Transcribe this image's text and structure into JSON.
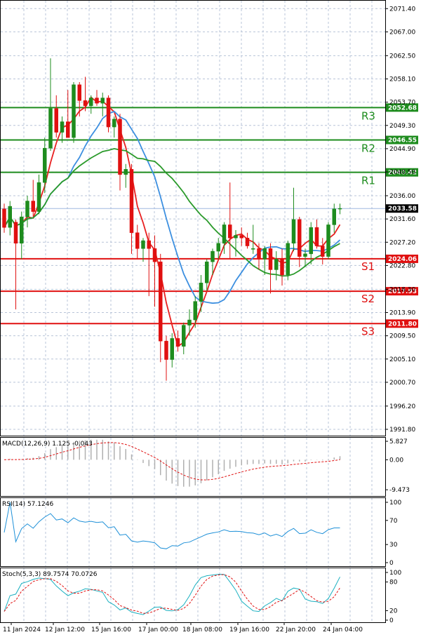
{
  "chart_data": {
    "type": "candlestick",
    "price_axis": {
      "ticks": [
        "2071.40",
        "2067.00",
        "2062.50",
        "2058.10",
        "2053.70",
        "2049.30",
        "2044.90",
        "2040.50",
        "2036.00",
        "2031.60",
        "2027.20",
        "2022.80",
        "2018.30",
        "2013.90",
        "2009.50",
        "2005.10",
        "2000.70",
        "1996.20",
        "1991.80"
      ],
      "range": [
        1991.0,
        2072.5
      ]
    },
    "current_price": "2033.58",
    "levels": [
      {
        "name": "R3",
        "value": "2052.68",
        "color": "#1e8c1e"
      },
      {
        "name": "R2",
        "value": "2046.55",
        "color": "#1e8c1e"
      },
      {
        "name": "R1",
        "value": "2040.42",
        "color": "#1e8c1e"
      },
      {
        "name": "S1",
        "value": "2024.06",
        "color": "#e01010"
      },
      {
        "name": "S2",
        "value": "2017.93",
        "color": "#e01010"
      },
      {
        "name": "S3",
        "value": "2011.80",
        "color": "#e01010"
      }
    ],
    "x_labels": [
      "11 Jan 2024",
      "12 Jan 12:00",
      "15 Jan 16:00",
      "17 Jan 00:00",
      "18 Jan 08:00",
      "19 Jan 16:00",
      "22 Jan 20:00",
      "24 Jan 04:00"
    ],
    "candles": [
      [
        2033.5,
        2034.5,
        2029.0,
        2030.0
      ],
      [
        2030.0,
        2035.0,
        2028.5,
        2034.0
      ],
      [
        2031.0,
        2031.5,
        2014.5,
        2027.0
      ],
      [
        2027.0,
        2033.0,
        2024.0,
        2032.0
      ],
      [
        2032.0,
        2036.0,
        2030.0,
        2035.0
      ],
      [
        2035.0,
        2039.0,
        2032.0,
        2033.0
      ],
      [
        2033.0,
        2040.0,
        2032.5,
        2038.5
      ],
      [
        2038.5,
        2047.0,
        2036.5,
        2045.0
      ],
      [
        2045.0,
        2062.0,
        2044.5,
        2052.5
      ],
      [
        2052.5,
        2055.0,
        2047.0,
        2048.0
      ],
      [
        2048.0,
        2051.0,
        2046.0,
        2050.0
      ],
      [
        2050.0,
        2056.0,
        2047.0,
        2047.0
      ],
      [
        2047.0,
        2057.5,
        2046.0,
        2057.0
      ],
      [
        2057.0,
        2057.5,
        2051.0,
        2054.0
      ],
      [
        2054.0,
        2058.5,
        2052.0,
        2053.0
      ],
      [
        2053.0,
        2055.0,
        2051.5,
        2054.5
      ],
      [
        2054.5,
        2056.0,
        2053.0,
        2053.5
      ],
      [
        2053.5,
        2055.5,
        2051.0,
        2054.5
      ],
      [
        2054.5,
        2055.0,
        2048.0,
        2049.0
      ],
      [
        2049.0,
        2051.0,
        2047.0,
        2050.5
      ],
      [
        2050.5,
        2051.5,
        2037.0,
        2040.0
      ],
      [
        2040.0,
        2042.0,
        2037.5,
        2041.0
      ],
      [
        2041.0,
        2042.0,
        2025.0,
        2029.0
      ],
      [
        2029.0,
        2030.5,
        2024.0,
        2026.0
      ],
      [
        2026.0,
        2028.0,
        2023.5,
        2027.5
      ],
      [
        2027.5,
        2029.0,
        2017.0,
        2026.0
      ],
      [
        2026.0,
        2028.5,
        2015.0,
        2023.5
      ],
      [
        2023.5,
        2025.0,
        2004.5,
        2008.5
      ],
      [
        2008.5,
        2009.5,
        2001.0,
        2005.0
      ],
      [
        2005.0,
        2010.0,
        2003.5,
        2009.0
      ],
      [
        2009.0,
        2010.5,
        2006.5,
        2007.5
      ],
      [
        2007.5,
        2012.0,
        2006.0,
        2011.5
      ],
      [
        2011.5,
        2014.5,
        2009.5,
        2012.5
      ],
      [
        2012.5,
        2017.0,
        2011.0,
        2016.0
      ],
      [
        2016.0,
        2021.0,
        2014.0,
        2019.5
      ],
      [
        2019.5,
        2024.0,
        2018.0,
        2023.5
      ],
      [
        2023.5,
        2026.0,
        2021.0,
        2025.5
      ],
      [
        2025.5,
        2028.0,
        2024.0,
        2027.0
      ],
      [
        2027.0,
        2031.0,
        2025.0,
        2030.5
      ],
      [
        2030.5,
        2038.5,
        2024.0,
        2028.0
      ],
      [
        2028.0,
        2029.5,
        2024.5,
        2028.5
      ],
      [
        2028.5,
        2030.0,
        2026.5,
        2028.0
      ],
      [
        2028.0,
        2029.0,
        2026.0,
        2026.5
      ],
      [
        2026.0,
        2030.5,
        2025.0,
        2026.0
      ],
      [
        2026.0,
        2027.0,
        2022.0,
        2024.0
      ],
      [
        2024.0,
        2026.5,
        2021.0,
        2026.0
      ],
      [
        2026.0,
        2027.0,
        2017.5,
        2022.0
      ],
      [
        2022.0,
        2025.5,
        2020.0,
        2024.0
      ],
      [
        2024.0,
        2026.0,
        2019.0,
        2021.0
      ],
      [
        2021.0,
        2027.5,
        2020.0,
        2027.0
      ],
      [
        2027.0,
        2037.5,
        2025.5,
        2031.5
      ],
      [
        2031.5,
        2032.0,
        2022.5,
        2024.5
      ],
      [
        2024.5,
        2026.0,
        2022.5,
        2025.0
      ],
      [
        2025.0,
        2031.0,
        2023.0,
        2030.0
      ],
      [
        2030.0,
        2031.5,
        2026.0,
        2026.5
      ],
      [
        2026.5,
        2028.0,
        2023.0,
        2024.5
      ],
      [
        2024.5,
        2031.0,
        2024.0,
        2030.5
      ],
      [
        2030.5,
        2034.5,
        2029.0,
        2033.5
      ],
      [
        2033.5,
        2034.5,
        2032.5,
        2033.6
      ]
    ],
    "macd": {
      "label": "MACD(12,26,9) 1.125 -0.043",
      "ticks": [
        "5.827",
        "0.00",
        "-9.473"
      ],
      "range": [
        -11,
        6.5
      ]
    },
    "rsi": {
      "label": "RSI(14) 57.1246",
      "ticks": [
        "100",
        "70",
        "30",
        "0"
      ],
      "range": [
        0,
        100
      ]
    },
    "stoch": {
      "label": "Stoch(5,3,3) 89.7574 70.0726",
      "ticks": [
        "100",
        "80",
        "20",
        "0"
      ],
      "range": [
        0,
        100
      ]
    },
    "colors": {
      "up": "#1e8c1e",
      "down": "#e01010",
      "ma_fast": "#e82020",
      "ma_mid": "#3c8fe0",
      "ma_slow": "#2a9a2a",
      "rsi_line": "#1e90d8",
      "stoch_main": "#1ab0c0",
      "stoch_signal": "#e01010"
    }
  }
}
